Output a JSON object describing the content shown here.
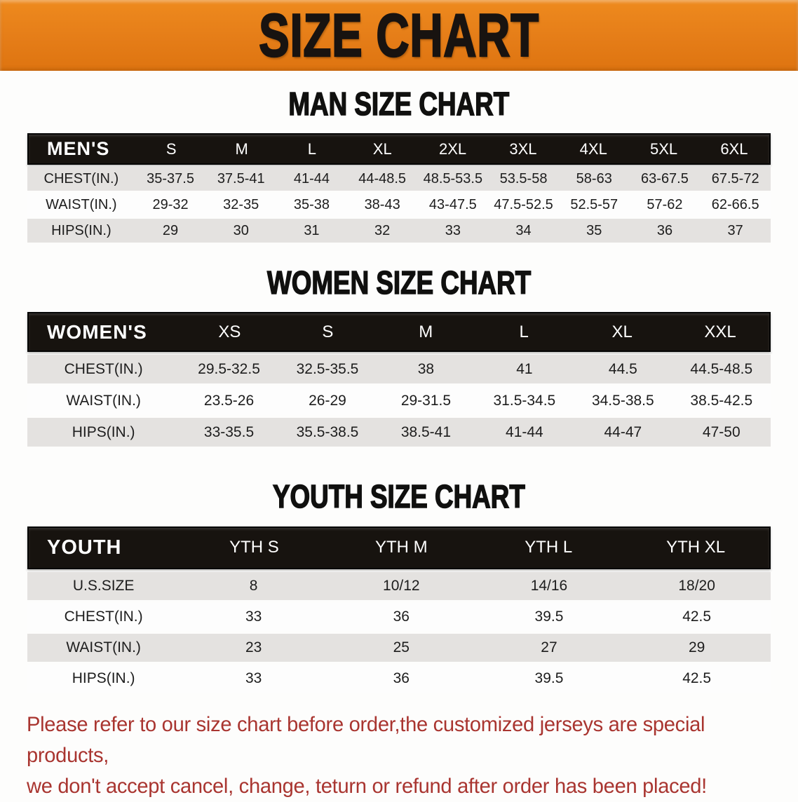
{
  "banner": {
    "title": "SIZE CHART",
    "bg_color": "#e57d18",
    "text_color": "#181310"
  },
  "sections": [
    {
      "id": "men",
      "heading": "MAN SIZE CHART",
      "group_label": "MEN'S",
      "columns": [
        "S",
        "M",
        "L",
        "XL",
        "2XL",
        "3XL",
        "4XL",
        "5XL",
        "6XL"
      ],
      "rows": [
        {
          "label": "CHEST(IN.)",
          "values": [
            "35-37.5",
            "37.5-41",
            "41-44",
            "44-48.5",
            "48.5-53.5",
            "53.5-58",
            "58-63",
            "63-67.5",
            "67.5-72"
          ]
        },
        {
          "label": "WAIST(IN.)",
          "values": [
            "29-32",
            "32-35",
            "35-38",
            "38-43",
            "43-47.5",
            "47.5-52.5",
            "52.5-57",
            "57-62",
            "62-66.5"
          ]
        },
        {
          "label": "HIPS(IN.)",
          "values": [
            "29",
            "30",
            "31",
            "32",
            "33",
            "34",
            "35",
            "36",
            "37"
          ]
        }
      ]
    },
    {
      "id": "women",
      "heading": "WOMEN SIZE CHART",
      "group_label": "WOMEN'S",
      "columns": [
        "XS",
        "S",
        "M",
        "L",
        "XL",
        "XXL"
      ],
      "rows": [
        {
          "label": "CHEST(IN.)",
          "values": [
            "29.5-32.5",
            "32.5-35.5",
            "38",
            "41",
            "44.5",
            "44.5-48.5"
          ]
        },
        {
          "label": "WAIST(IN.)",
          "values": [
            "23.5-26",
            "26-29",
            "29-31.5",
            "31.5-34.5",
            "34.5-38.5",
            "38.5-42.5"
          ]
        },
        {
          "label": "HIPS(IN.)",
          "values": [
            "33-35.5",
            "35.5-38.5",
            "38.5-41",
            "41-44",
            "44-47",
            "47-50"
          ]
        }
      ]
    },
    {
      "id": "youth",
      "heading": "YOUTH SIZE CHART",
      "group_label": "YOUTH",
      "columns": [
        "YTH S",
        "YTH M",
        "YTH L",
        "YTH XL"
      ],
      "rows": [
        {
          "label": "U.S.SIZE",
          "values": [
            "8",
            "10/12",
            "14/16",
            "18/20"
          ]
        },
        {
          "label": "CHEST(IN.)",
          "values": [
            "33",
            "36",
            "39.5",
            "42.5"
          ]
        },
        {
          "label": "WAIST(IN.)",
          "values": [
            "23",
            "25",
            "27",
            "29"
          ]
        },
        {
          "label": "HIPS(IN.)",
          "values": [
            "33",
            "36",
            "39.5",
            "42.5"
          ]
        }
      ]
    }
  ],
  "footer": {
    "line1": "Please refer to our size chart before order,the customized jerseys are special products,",
    "line2": "we don't accept cancel, change, teturn or refund after order has been placed!",
    "text_color": "#a93530"
  },
  "colors": {
    "header_bar_bg": "#17130f",
    "row_alt_bg": "#e4e2e0",
    "row_white_bg": "#fdfdfd"
  }
}
